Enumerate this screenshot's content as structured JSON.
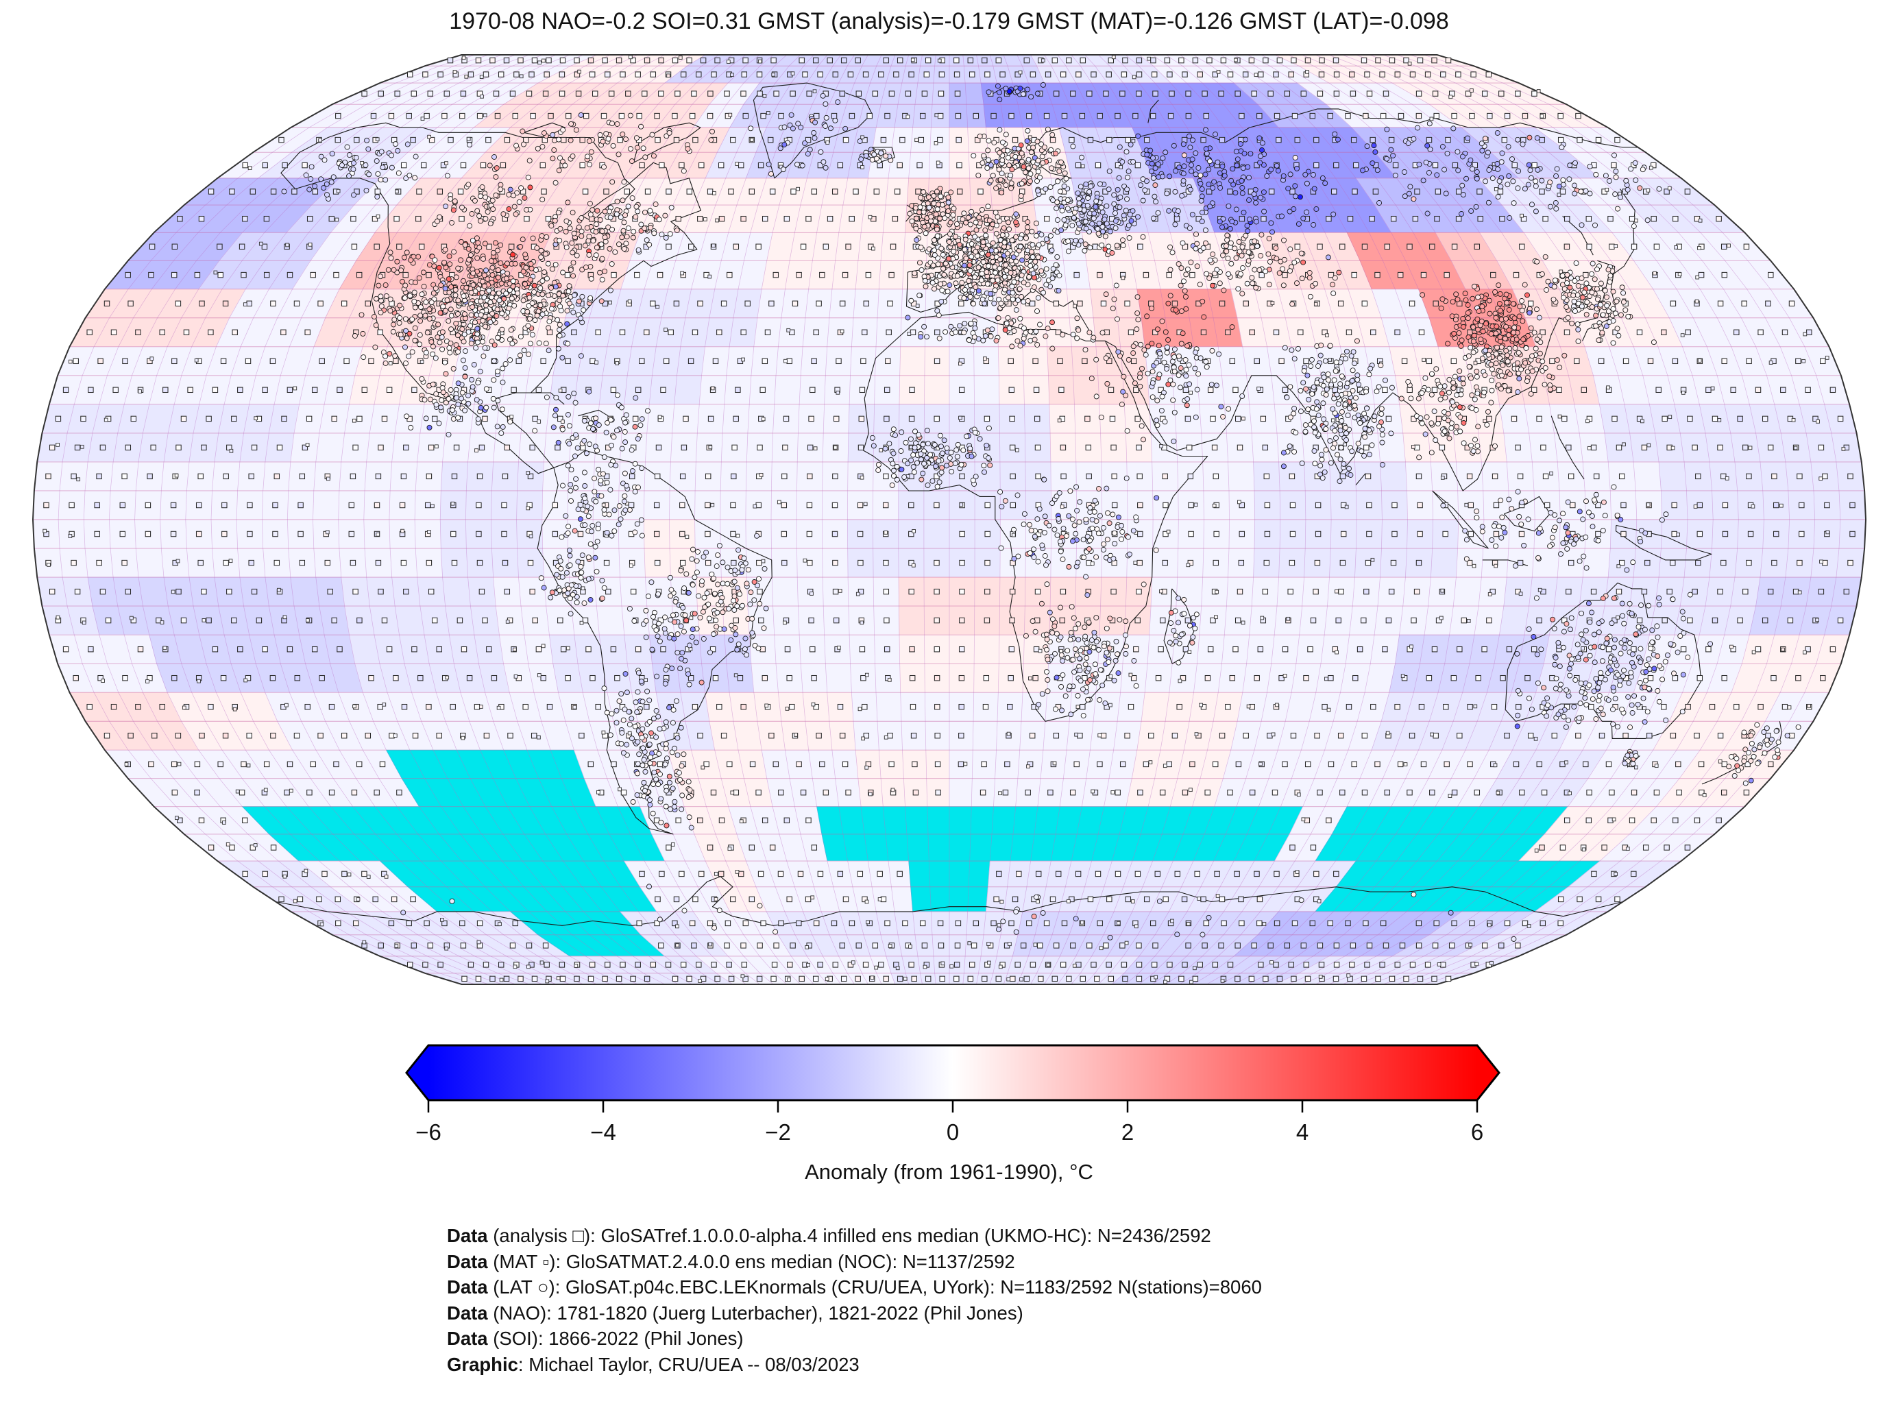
{
  "title": "1970-08 NAO=-0.2 SOI=0.31 GMST (analysis)=-0.179 GMST (MAT)=-0.126 GMST (LAT)=-0.098",
  "colorbar": {
    "label": "Anomaly (from 1961-1990), °C",
    "min": -6,
    "max": 6,
    "ticks": [
      "−6",
      "−4",
      "−2",
      "0",
      "2",
      "4",
      "6"
    ],
    "tick_values": [
      -6,
      -4,
      -2,
      0,
      2,
      4,
      6
    ],
    "color_negative": "#0000ff",
    "color_mid": "#ffffff",
    "color_positive": "#ff0000"
  },
  "captions": [
    {
      "prefix": "Data",
      "text": " (analysis □): GloSATref.1.0.0.0-alpha.4 infilled ens median (UKMO-HC): N=2436/2592"
    },
    {
      "prefix": "Data",
      "text": " (MAT ▫): GloSATMAT.2.4.0.0 ens median (NOC): N=1137/2592"
    },
    {
      "prefix": "Data",
      "text": " (LAT ○): GloSAT.p04c.EBC.LEKnormals (CRU/UEA, UYork): N=1183/2592 N(stations)=8060"
    },
    {
      "prefix": "Data",
      "text": " (NAO): 1781-1820 (Juerg Luterbacher), 1821-2022 (Phil Jones)"
    },
    {
      "prefix": "Data",
      "text": " (SOI): 1866-2022 (Phil Jones)"
    },
    {
      "prefix": "Graphic",
      "text": ": Michael Taylor, CRU/UEA -- 08/03/2023"
    }
  ],
  "map": {
    "projection": "robinson",
    "graticule_step_deg": 5,
    "anomaly_grid_step_deg": 10,
    "missing_data_color": "#00e6ec",
    "coast_color": "#1a1a1a",
    "meridian_color": "rgba(186,108,196,0.45)",
    "parallel_color": "rgba(199,94,160,0.55)",
    "value_map": {
      "B": -2.4,
      "b": -1.55,
      "c": -0.95,
      "d": -0.55,
      "e": -0.25,
      "f": 0.3,
      "g": 0.7,
      "h": 1.35,
      "i": 2.3,
      "X": "missing"
    },
    "anomaly_rows": [
      "eeeeeffffccccccccccccddddeeeeeffffff",
      "eeeeeggggggeccccccbBBBBBBBBbbeeeffff",
      "edddeeggggggdccceefffccBBBBBBbbbccee",
      "bbbcegggggfffffffgggecccBBBBbbbddedd",
      "bbccehhhhggeeeffffffeffffggiihgffeee",
      "gggeegggffddddeeeeeffgiifffeiigffeee",
      "eeeeeeffeedddeeeefefggeeeeeffggeeeee",
      "dddddeeeeeeeeeeeddddffeeeeeffeeddddd",
      "eeeeeeeeddeeeeeeedddeeeedddeeeeedddd",
      "eeeeeeeeddeefeeedddeeeeeddddeeeddddd",
      "dcccccdddeeeefeeegggggeeeeeeedddddcc",
      "eeccccdddeddcceeefffeeeeeeecccddeeff",
      "ggffeeeeeeeedfffeeeeeeffeeeddddeeffe",
      "eeeeeeXXXXeeffeeffeeeeffeeeeeeddeeff",
      "eeXXXXXXXXXefeeXXXXXXXXXXXeXXXXXffee",
      "ddeeXXXXXXeefeeeeXXdddddddddXXXXXXdd",
      "ddddddXXXddeedddddddcccccccbbbbbccdd",
      "ddddddddddeeeeeeddddddddccccccdddddd"
    ],
    "markers": {
      "analysis_square_cells": 2436,
      "mat_square_cells": 1137,
      "lat_station_circles": 8060
    },
    "station_regions": [
      {
        "name": "usa",
        "lon0": -125,
        "lon1": -72,
        "lat0": 26,
        "lat1": 50,
        "n": 700
      },
      {
        "name": "canada-sw",
        "lon0": -122,
        "lon1": -95,
        "lat0": 50,
        "lat1": 60,
        "n": 60
      },
      {
        "name": "canada-se",
        "lon0": -95,
        "lon1": -60,
        "lat0": 45,
        "lat1": 57,
        "n": 130
      },
      {
        "name": "mexico",
        "lon0": -110,
        "lon1": -86,
        "lat0": 14,
        "lat1": 28,
        "n": 90
      },
      {
        "name": "caribbean",
        "lon0": -85,
        "lon1": -58,
        "lat0": 8,
        "lat1": 24,
        "n": 70
      },
      {
        "name": "n-south-america",
        "lon0": -79,
        "lon1": -60,
        "lat0": -5,
        "lat1": 11,
        "n": 80
      },
      {
        "name": "peru",
        "lon0": -81,
        "lon1": -68,
        "lat0": -18,
        "lat1": -3,
        "n": 60
      },
      {
        "name": "brazil-east",
        "lon0": -57,
        "lon1": -35,
        "lat0": -25,
        "lat1": -2,
        "n": 140
      },
      {
        "name": "brazil-interior",
        "lon0": -65,
        "lon1": -50,
        "lat0": -30,
        "lat1": -10,
        "n": 50
      },
      {
        "name": "southern-cone",
        "lon0": -73,
        "lon1": -55,
        "lat0": -55,
        "lat1": -25,
        "n": 150
      },
      {
        "name": "iceland",
        "lon0": -23,
        "lon1": -14,
        "lat0": 63,
        "lat1": 66,
        "n": 25
      },
      {
        "name": "uk-ireland",
        "lon0": -10,
        "lon1": 2,
        "lat0": 50,
        "lat1": 59,
        "n": 110
      },
      {
        "name": "europe",
        "lon0": -9,
        "lon1": 25,
        "lat0": 36,
        "lat1": 55,
        "n": 620
      },
      {
        "name": "scandinavia",
        "lon0": 5,
        "lon1": 31,
        "lat0": 55,
        "lat1": 70,
        "n": 160
      },
      {
        "name": "east-europe",
        "lon0": 22,
        "lon1": 45,
        "lat0": 45,
        "lat1": 60,
        "n": 170
      },
      {
        "name": "north-africa",
        "lon0": -10,
        "lon1": 36,
        "lat0": 29,
        "lat1": 36,
        "n": 80
      },
      {
        "name": "west-africa",
        "lon0": -17,
        "lon1": 10,
        "lat0": 5,
        "lat1": 17,
        "n": 130
      },
      {
        "name": "central-east-africa",
        "lon0": 8,
        "lon1": 42,
        "lat0": -12,
        "lat1": 8,
        "n": 130
      },
      {
        "name": "south-africa",
        "lon0": 12,
        "lon1": 40,
        "lat0": -35,
        "lat1": -12,
        "n": 140
      },
      {
        "name": "madagascar",
        "lon0": 43,
        "lon1": 50,
        "lat0": -26,
        "lat1": -13,
        "n": 25
      },
      {
        "name": "middle-east",
        "lon0": 26,
        "lon1": 60,
        "lat0": 12,
        "lat1": 42,
        "n": 140
      },
      {
        "name": "central-asia",
        "lon0": 46,
        "lon1": 85,
        "lat0": 36,
        "lat1": 55,
        "n": 150
      },
      {
        "name": "india",
        "lon0": 65,
        "lon1": 90,
        "lat0": 6,
        "lat1": 32,
        "n": 230
      },
      {
        "name": "se-asia",
        "lon0": 90,
        "lon1": 110,
        "lat0": 10,
        "lat1": 28,
        "n": 100
      },
      {
        "name": "indonesia",
        "lon0": 95,
        "lon1": 142,
        "lat0": -10,
        "lat1": 6,
        "n": 90
      },
      {
        "name": "china",
        "lon0": 100,
        "lon1": 126,
        "lat0": 20,
        "lat1": 42,
        "n": 300
      },
      {
        "name": "japan-korea",
        "lon0": 126,
        "lon1": 146,
        "lat0": 30,
        "lat1": 46,
        "n": 150
      },
      {
        "name": "russia-west",
        "lon0": 30,
        "lon1": 95,
        "lat0": 50,
        "lat1": 70,
        "n": 190
      },
      {
        "name": "siberia-east",
        "lon0": 95,
        "lon1": 180,
        "lat0": 50,
        "lat1": 72,
        "n": 150
      },
      {
        "name": "svalbard",
        "lon0": 10,
        "lon1": 30,
        "lat0": 76,
        "lat1": 80,
        "n": 22
      },
      {
        "name": "greenland-coast",
        "lon0": -55,
        "lon1": -20,
        "lat0": 59,
        "lat1": 78,
        "n": 40
      },
      {
        "name": "alaska",
        "lon0": -166,
        "lon1": -130,
        "lat0": 55,
        "lat1": 68,
        "n": 60
      },
      {
        "name": "north-canada",
        "lon0": -130,
        "lon1": -60,
        "lat0": 58,
        "lat1": 74,
        "n": 80
      },
      {
        "name": "australia",
        "lon0": 113,
        "lon1": 154,
        "lat0": -39,
        "lat1": -12,
        "n": 240
      },
      {
        "name": "tasmania",
        "lon0": 144,
        "lon1": 149,
        "lat0": -43,
        "lat1": -40,
        "n": 14
      },
      {
        "name": "new-zealand",
        "lon0": 166,
        "lon1": 179,
        "lat0": -47,
        "lat1": -34,
        "n": 45
      },
      {
        "name": "antarctica-coast",
        "lon0": -180,
        "lon1": 180,
        "lat0": -78,
        "lat1": -64,
        "n": 28
      }
    ]
  }
}
